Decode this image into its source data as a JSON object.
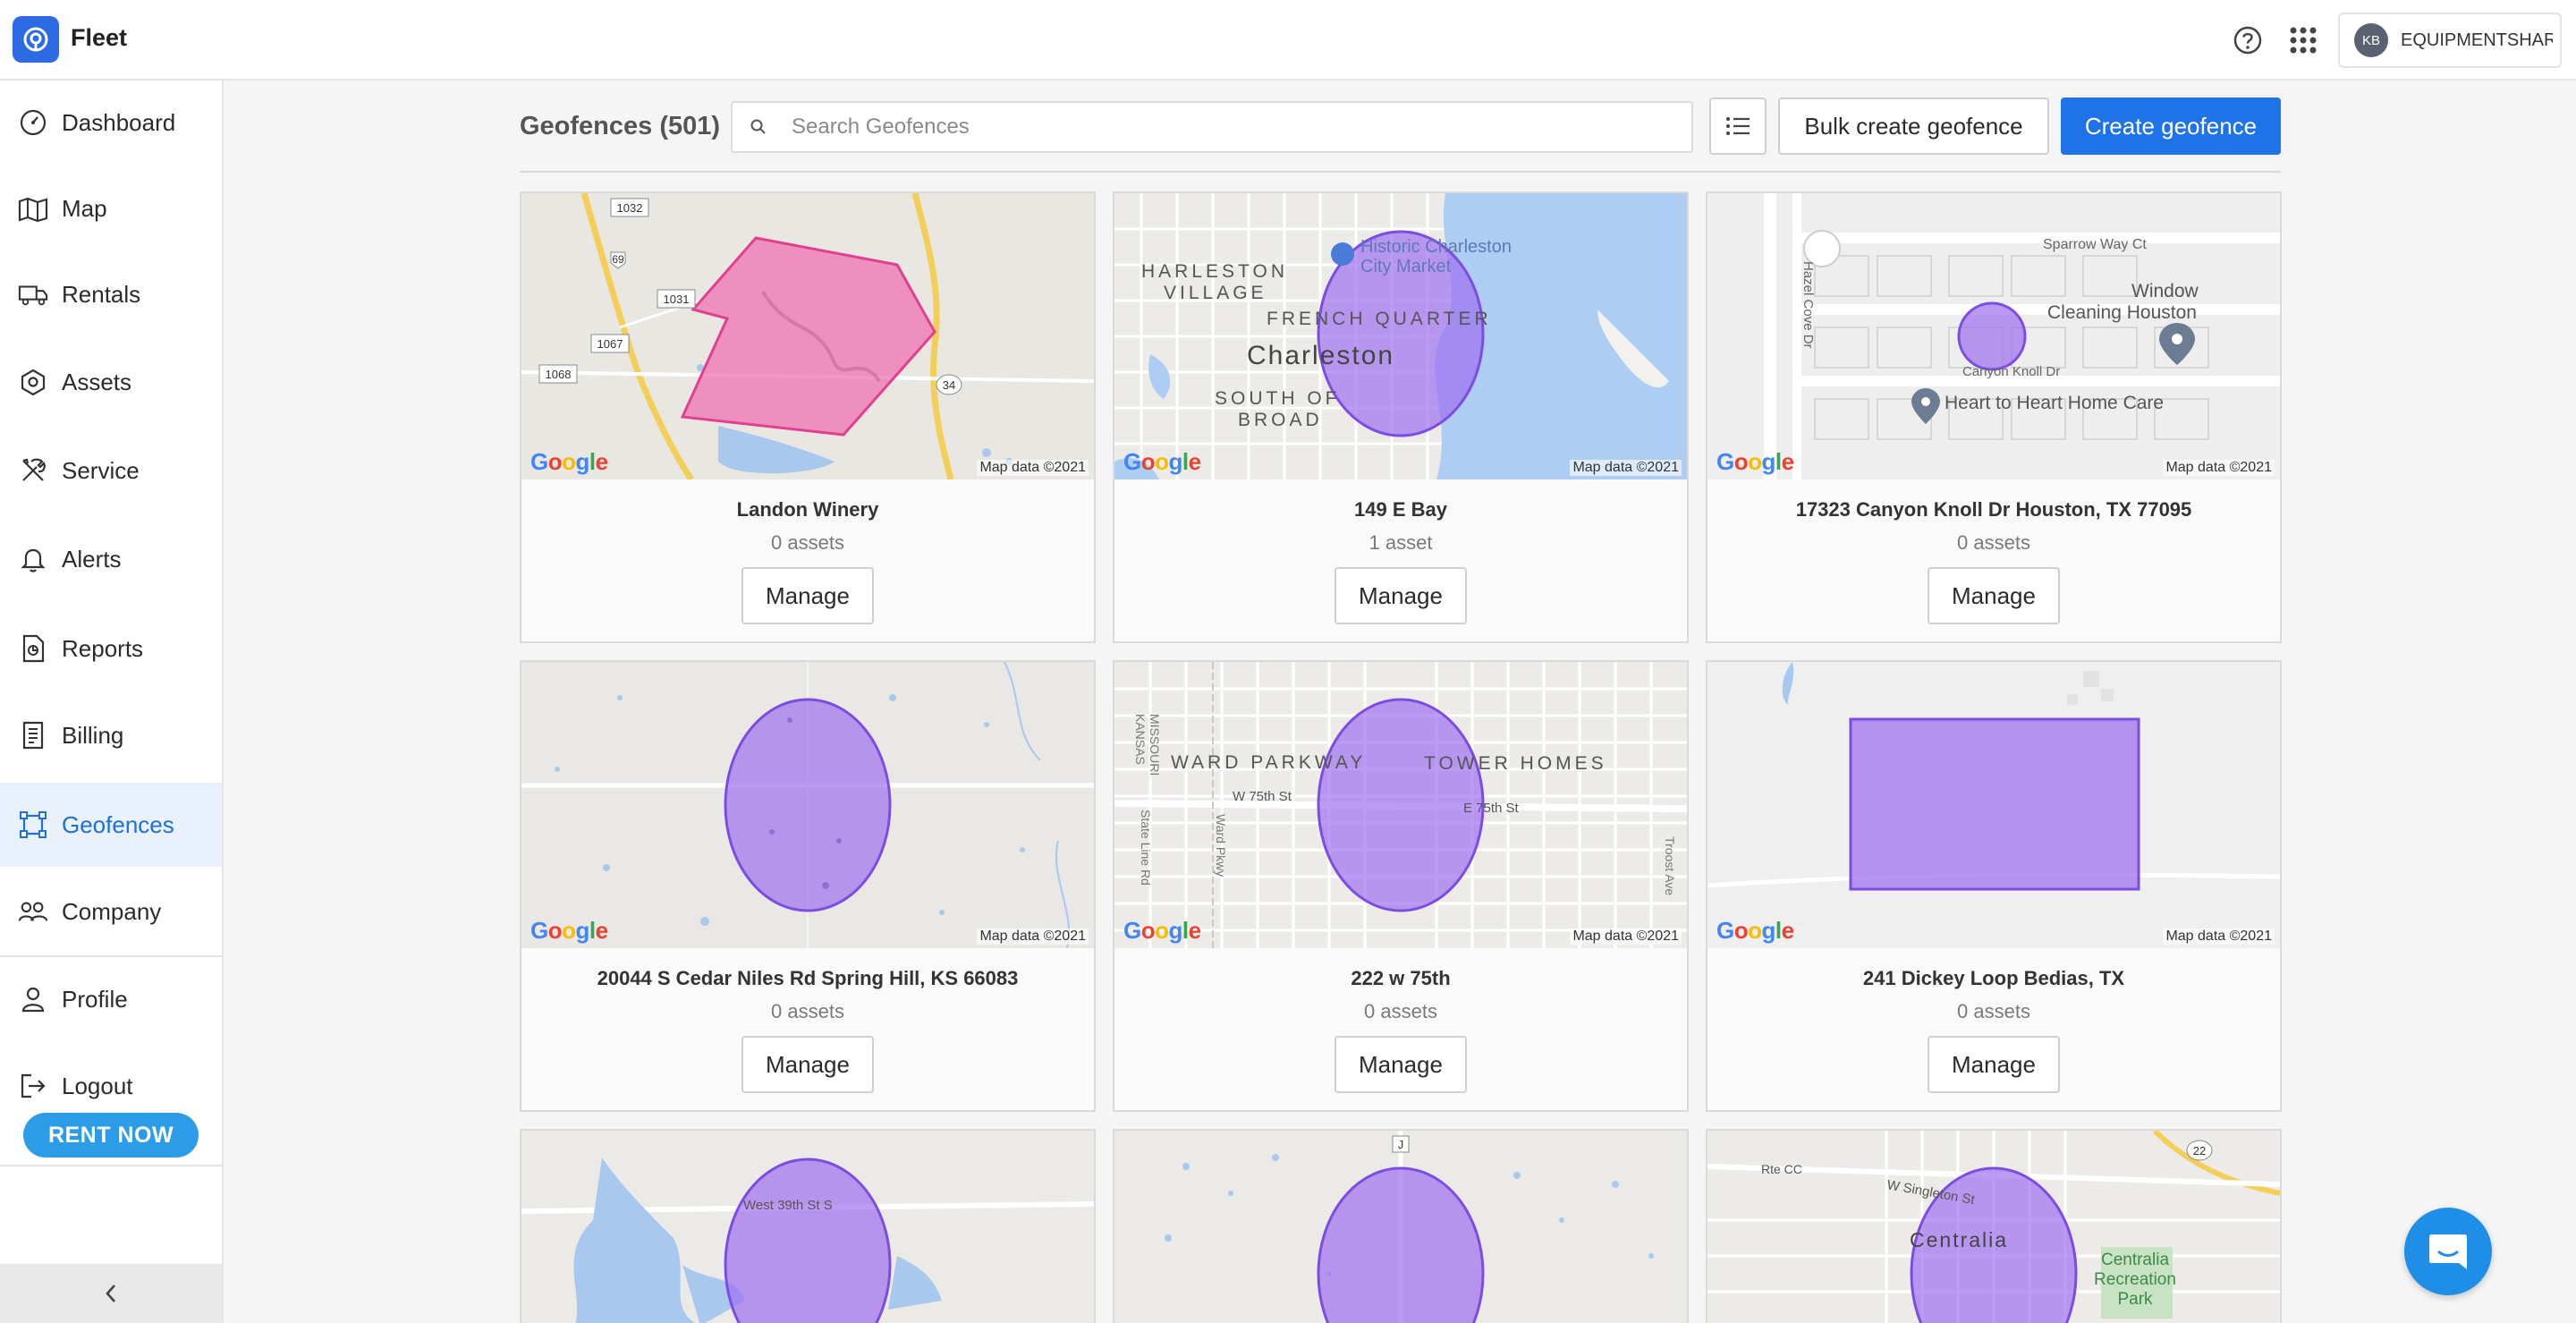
{
  "app": {
    "name": "Fleet"
  },
  "topbar": {
    "account_initials": "KB",
    "account_name": "EQUIPMENTSHARE",
    "help_icon": "help-circle-icon",
    "apps_icon": "grid-apps-icon"
  },
  "sidebar": {
    "items": [
      {
        "label": "Dashboard",
        "icon": "gauge-icon"
      },
      {
        "label": "Map",
        "icon": "map-icon"
      },
      {
        "label": "Rentals",
        "icon": "truck-icon"
      },
      {
        "label": "Assets",
        "icon": "hexagon-icon"
      },
      {
        "label": "Service",
        "icon": "tools-icon"
      },
      {
        "label": "Alerts",
        "icon": "bell-icon"
      },
      {
        "label": "Reports",
        "icon": "report-icon"
      },
      {
        "label": "Billing",
        "icon": "invoice-icon"
      },
      {
        "label": "Geofences",
        "icon": "geofence-icon",
        "active": true
      },
      {
        "label": "Company",
        "icon": "company-icon"
      },
      {
        "label": "Profile",
        "icon": "person-icon"
      },
      {
        "label": "Logout",
        "icon": "logout-icon"
      }
    ],
    "rent_now": "RENT NOW"
  },
  "main": {
    "title": "Geofences (501)",
    "search_placeholder": "Search Geofences",
    "bulk_create_label": "Bulk create geofence",
    "create_label": "Create geofence"
  },
  "map_labels": {
    "google": "Google",
    "credit": "Map data ©2021"
  },
  "colors": {
    "primary": "#1f73e8",
    "active_bg": "#e9f1fd",
    "geofence_purple": "#9c6cf0",
    "geofence_pink": "#ee6fb0",
    "rent_now": "#2d9ce8"
  },
  "geofences": [
    {
      "name": "Landon Winery",
      "assets": "0 assets",
      "manage": "Manage",
      "map_labels": [
        "1032",
        "69",
        "1031",
        "1067",
        "1068",
        "34"
      ]
    },
    {
      "name": "149 E Bay",
      "assets": "1 asset",
      "manage": "Manage",
      "map_labels": [
        "Historic Charleston",
        "City Market",
        "HARLESTON",
        "VILLAGE",
        "FRENCH QUARTER",
        "Charleston",
        "SOUTH OF",
        "BROAD"
      ]
    },
    {
      "name": "17323 Canyon Knoll Dr Houston, TX 77095",
      "assets": "0 assets",
      "manage": "Manage",
      "map_labels": [
        "Sparrow Way Ct",
        "Window",
        "Cleaning Houston",
        "Hazel Cove Dr",
        "Canyon Knoll Dr",
        "Heart to Heart Home Care"
      ]
    },
    {
      "name": "20044 S Cedar Niles Rd Spring Hill, KS 66083",
      "assets": "0 assets",
      "manage": "Manage",
      "map_labels": []
    },
    {
      "name": "222 w 75th",
      "assets": "0 assets",
      "manage": "Manage",
      "map_labels": [
        "MISSOURI",
        "KANSAS",
        "WARD PARKWAY",
        "TOWER HOMES",
        "W 75th St",
        "E 75th St",
        "State Line Rd",
        "Ward Pkwy",
        "Troost Ave"
      ]
    },
    {
      "name": "241 Dickey Loop Bedias, TX",
      "assets": "0 assets",
      "manage": "Manage",
      "map_labels": []
    },
    {
      "map_labels": [
        "West 39th St S"
      ]
    },
    {
      "map_labels": [
        "J"
      ]
    },
    {
      "map_labels": [
        "Rte CC",
        "W Singleton St",
        "22",
        "Centralia",
        "Centralia",
        "Recreation",
        "Park"
      ]
    }
  ]
}
